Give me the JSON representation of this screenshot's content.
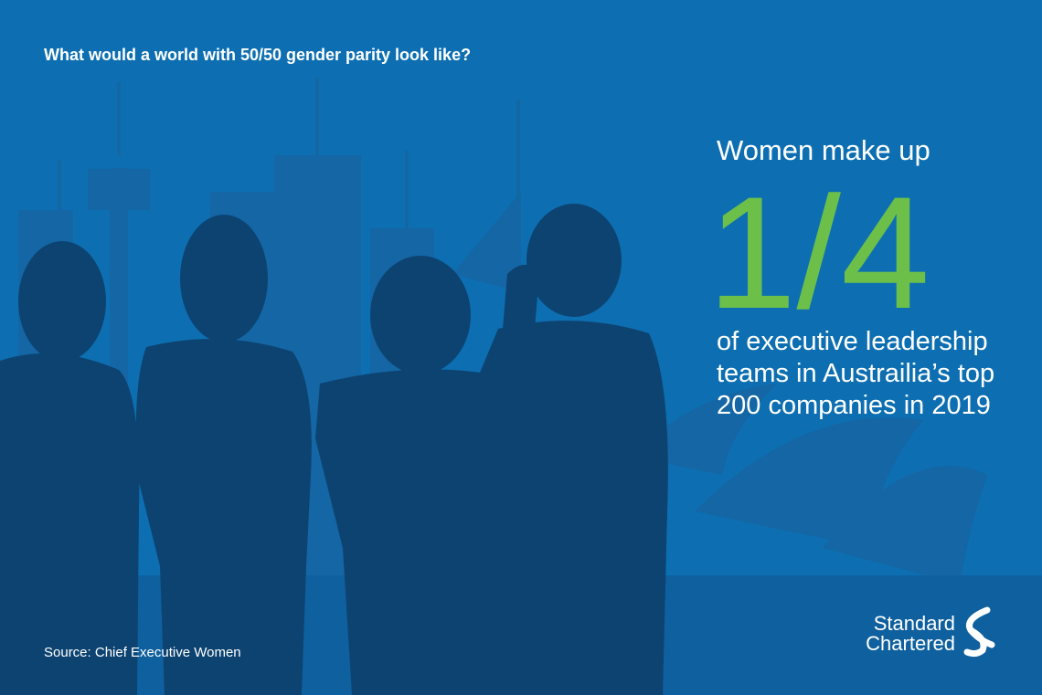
{
  "header": {
    "title": "What would a world with 50/50 gender parity look like?"
  },
  "stat": {
    "intro": "Women make up",
    "figure": "1/4",
    "body_lines": [
      "of executive leadership",
      "teams in Austrailia’s top",
      "200 companies in 2019"
    ]
  },
  "source": "Source: Chief Executive Women",
  "logo": {
    "lines": [
      "Standard",
      "Chartered"
    ]
  }
}
